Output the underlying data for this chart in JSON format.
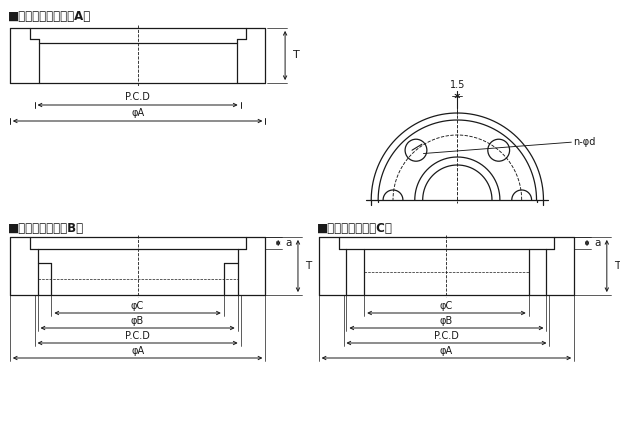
{
  "bg_color": "#ffffff",
  "line_color": "#1a1a1a",
  "title_A": "■ブランクタイプ（A）",
  "title_B": "■穴あきタイプ（B）",
  "title_C": "■穴あきタイプ（C）",
  "label_T": "T",
  "label_a": "a",
  "label_PCD": "P.C.D",
  "label_phiA": "φA",
  "label_phiB": "φB",
  "label_phiC": "φC",
  "label_15": "1.5",
  "label_nphid": "n-φd",
  "font_size_title": 8.5,
  "font_size_label": 7.5,
  "font_size_dim": 7
}
